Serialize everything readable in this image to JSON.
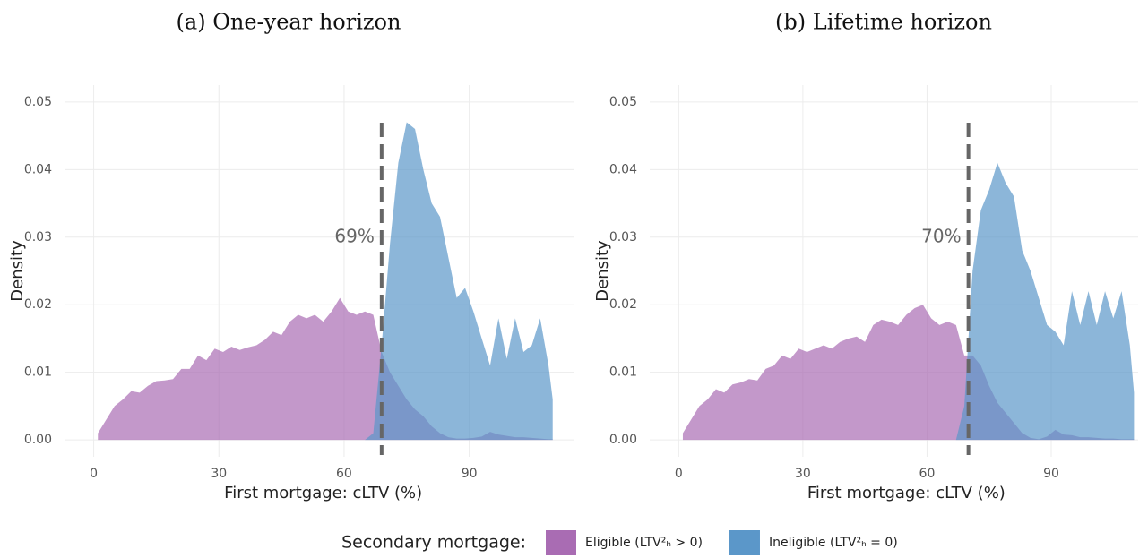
{
  "chart_data": [
    {
      "type": "area",
      "title": "(a) One-year horizon",
      "xlabel": "First mortgage: cLTV (%)",
      "ylabel": "Density",
      "x": [
        1,
        3,
        5,
        7,
        9,
        11,
        13,
        15,
        17,
        19,
        21,
        23,
        25,
        27,
        29,
        31,
        33,
        35,
        37,
        39,
        41,
        43,
        45,
        47,
        49,
        51,
        53,
        55,
        57,
        59,
        61,
        63,
        65,
        67,
        69,
        71,
        73,
        75,
        77,
        79,
        81,
        83,
        85,
        87,
        89,
        91,
        93,
        95,
        97,
        99,
        101,
        103,
        105,
        107,
        109,
        110
      ],
      "series": [
        {
          "name": "Eligible (LTV²ₕ > 0)",
          "color": "#a96cb3",
          "values": [
            0.001,
            0.003,
            0.005,
            0.006,
            0.0072,
            0.007,
            0.008,
            0.0087,
            0.0088,
            0.009,
            0.0105,
            0.0105,
            0.0125,
            0.0118,
            0.0135,
            0.013,
            0.0138,
            0.0133,
            0.0137,
            0.014,
            0.0148,
            0.016,
            0.0155,
            0.0175,
            0.0185,
            0.018,
            0.0185,
            0.0175,
            0.019,
            0.021,
            0.019,
            0.0185,
            0.019,
            0.0185,
            0.013,
            0.01,
            0.008,
            0.006,
            0.0045,
            0.0035,
            0.002,
            0.001,
            0.0004,
            0.0002,
            0.0002,
            0.0003,
            0.0005,
            0.0012,
            0.0008,
            0.0006,
            0.0004,
            0.0004,
            0.0003,
            0.0002,
            0.0001,
            0.0001
          ]
        },
        {
          "name": "Ineligible (LTV²ₕ = 0)",
          "color": "#5b97c9",
          "values": [
            null,
            null,
            null,
            null,
            null,
            null,
            null,
            null,
            null,
            null,
            null,
            null,
            null,
            null,
            null,
            null,
            null,
            null,
            null,
            null,
            null,
            null,
            null,
            null,
            null,
            null,
            null,
            null,
            null,
            null,
            null,
            null,
            0.0,
            0.001,
            0.014,
            0.029,
            0.041,
            0.047,
            0.046,
            0.04,
            0.035,
            0.033,
            0.027,
            0.021,
            0.0225,
            0.019,
            0.015,
            0.011,
            0.018,
            0.012,
            0.018,
            0.013,
            0.014,
            0.018,
            0.011,
            0.006
          ]
        }
      ],
      "vline": {
        "value": 69,
        "label": "69%"
      },
      "xlim": [
        -7,
        115
      ],
      "ylim": [
        -0.0025,
        0.0525
      ],
      "xticks": [
        0,
        30,
        60,
        90
      ],
      "yticks": [
        {
          "value": 0,
          "label": "0.00"
        },
        {
          "value": 0.01,
          "label": "0.01"
        },
        {
          "value": 0.02,
          "label": "0.02"
        },
        {
          "value": 0.03,
          "label": "0.03"
        },
        {
          "value": 0.04,
          "label": "0.04"
        },
        {
          "value": 0.05,
          "label": "0.05"
        }
      ],
      "grid": true
    },
    {
      "type": "area",
      "title": "(b) Lifetime horizon",
      "xlabel": "First mortgage: cLTV (%)",
      "ylabel": "Density",
      "x": [
        1,
        3,
        5,
        7,
        9,
        11,
        13,
        15,
        17,
        19,
        21,
        23,
        25,
        27,
        29,
        31,
        33,
        35,
        37,
        39,
        41,
        43,
        45,
        47,
        49,
        51,
        53,
        55,
        57,
        59,
        61,
        63,
        65,
        67,
        69,
        71,
        73,
        75,
        77,
        79,
        81,
        83,
        85,
        87,
        89,
        91,
        93,
        95,
        97,
        99,
        101,
        103,
        105,
        107,
        109,
        110
      ],
      "series": [
        {
          "name": "Eligible (LTV²ₕ > 0)",
          "color": "#a96cb3",
          "values": [
            0.001,
            0.003,
            0.005,
            0.006,
            0.0075,
            0.007,
            0.0082,
            0.0085,
            0.009,
            0.0088,
            0.0105,
            0.011,
            0.0125,
            0.012,
            0.0135,
            0.013,
            0.0135,
            0.014,
            0.0135,
            0.0145,
            0.015,
            0.0153,
            0.0145,
            0.017,
            0.0178,
            0.0175,
            0.017,
            0.0185,
            0.0195,
            0.02,
            0.018,
            0.017,
            0.0175,
            0.017,
            0.0125,
            0.0125,
            0.011,
            0.008,
            0.0055,
            0.004,
            0.0025,
            0.001,
            0.0003,
            0.0001,
            0.0005,
            0.0015,
            0.0008,
            0.0007,
            0.0004,
            0.0004,
            0.0003,
            0.0002,
            0.0002,
            0.0001,
            0.0001,
            0.0001
          ]
        },
        {
          "name": "Ineligible (LTV²ₕ = 0)",
          "color": "#5b97c9",
          "values": [
            null,
            null,
            null,
            null,
            null,
            null,
            null,
            null,
            null,
            null,
            null,
            null,
            null,
            null,
            null,
            null,
            null,
            null,
            null,
            null,
            null,
            null,
            null,
            null,
            null,
            null,
            null,
            null,
            null,
            null,
            null,
            null,
            null,
            0.0,
            0.005,
            0.025,
            0.034,
            0.037,
            0.041,
            0.038,
            0.036,
            0.028,
            0.025,
            0.021,
            0.017,
            0.016,
            0.014,
            0.022,
            0.017,
            0.022,
            0.017,
            0.022,
            0.018,
            0.022,
            0.014,
            0.007
          ]
        }
      ],
      "vline": {
        "value": 70,
        "label": "70%"
      },
      "xlim": [
        -7,
        111
      ],
      "ylim": [
        -0.0025,
        0.0525
      ],
      "xticks": [
        0,
        30,
        60,
        90
      ],
      "yticks": [
        {
          "value": 0,
          "label": "0.00"
        },
        {
          "value": 0.01,
          "label": "0.01"
        },
        {
          "value": 0.02,
          "label": "0.02"
        },
        {
          "value": 0.03,
          "label": "0.03"
        },
        {
          "value": 0.04,
          "label": "0.04"
        },
        {
          "value": 0.05,
          "label": "0.05"
        }
      ],
      "grid": true
    }
  ],
  "legend": {
    "title": "Secondary mortgage:",
    "position": "bottom"
  }
}
